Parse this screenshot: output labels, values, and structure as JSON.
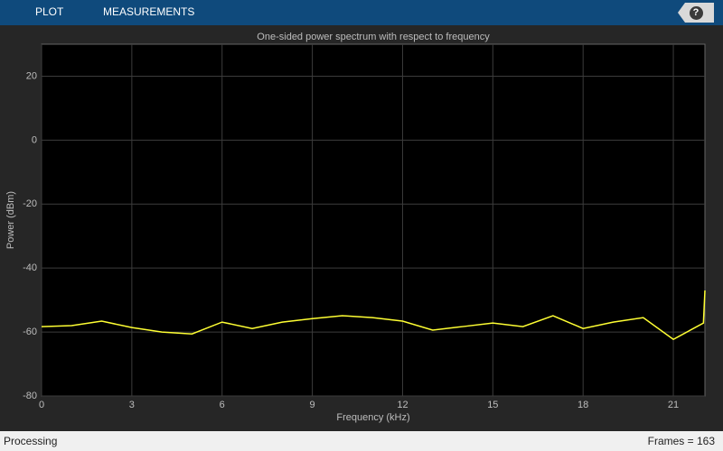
{
  "toolbar": {
    "tabs": [
      "PLOT",
      "MEASUREMENTS"
    ],
    "help": "?"
  },
  "chart_data": {
    "type": "line",
    "title": "One-sided power spectrum with respect to frequency",
    "x_label": "Frequency (kHz)",
    "y_label": "Power (dBm)",
    "x": [
      0,
      1,
      2,
      3,
      4,
      5,
      6,
      7,
      8,
      9,
      10,
      11,
      12,
      13,
      14,
      15,
      16,
      17,
      18,
      19,
      20,
      21,
      22,
      22.05
    ],
    "series": [
      {
        "color": "#ffff33",
        "values": [
          -58.3,
          -58,
          -56.6,
          -58.6,
          -60,
          -60.6,
          -56.9,
          -58.9,
          -56.9,
          -55.8,
          -54.9,
          -55.5,
          -56.6,
          -59.4,
          -58.3,
          -57.2,
          -58.3,
          -54.9,
          -58.9,
          -56.9,
          -55.5,
          -62.3,
          -57.2,
          -47
        ]
      }
    ],
    "xlim": [
      0,
      22.05
    ],
    "ylim": [
      -80,
      30
    ],
    "xticks": [
      0,
      3,
      6,
      9,
      12,
      15,
      18,
      21
    ],
    "yticks": [
      -80,
      -60,
      -40,
      -20,
      0,
      20
    ],
    "grid": true
  },
  "status": {
    "left": "Processing",
    "right": "Frames = 163"
  }
}
